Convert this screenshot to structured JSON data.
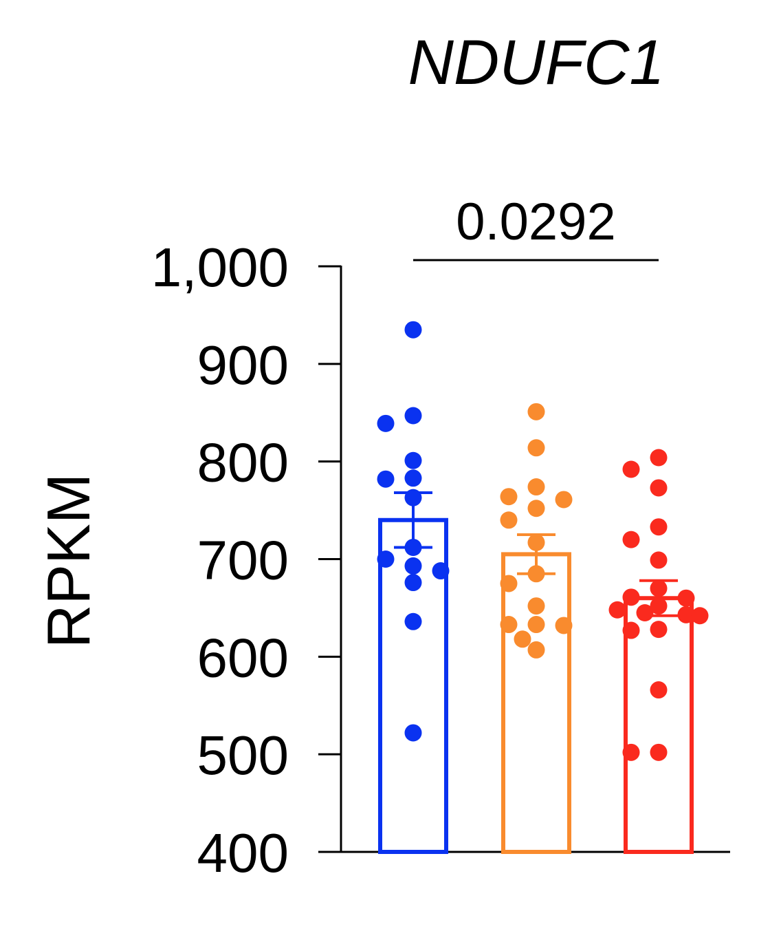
{
  "chart_data": {
    "type": "bar",
    "title": "NDUFC1",
    "xlabel": "",
    "ylabel": "RPKM",
    "ylim": [
      400,
      1000
    ],
    "yticks": [
      400,
      500,
      600,
      700,
      800,
      900,
      1000
    ],
    "ytick_labels": [
      "400",
      "500",
      "600",
      "700",
      "800",
      "900",
      "1,000"
    ],
    "grid": false,
    "legend": "none",
    "series": [
      {
        "color": "#0a32f0",
        "mean": 740,
        "sem": 28,
        "points": [
          935,
          847,
          839,
          801,
          783,
          782,
          763,
          712,
          700,
          693,
          688,
          676,
          636,
          522
        ]
      },
      {
        "color": "#f98b2e",
        "mean": 705,
        "sem": 20,
        "points": [
          851,
          814,
          774,
          764,
          761,
          752,
          740,
          717,
          685,
          675,
          652,
          633,
          633,
          632,
          618,
          607
        ]
      },
      {
        "color": "#fa2a1e",
        "mean": 660,
        "sem": 18,
        "points": [
          804,
          792,
          773,
          733,
          720,
          699,
          670,
          661,
          660,
          652,
          648,
          645,
          643,
          642,
          628,
          627,
          566,
          502,
          502
        ]
      }
    ],
    "annotations": [
      {
        "type": "significance",
        "from": 0,
        "to": 2,
        "label": "0.0292"
      }
    ]
  }
}
